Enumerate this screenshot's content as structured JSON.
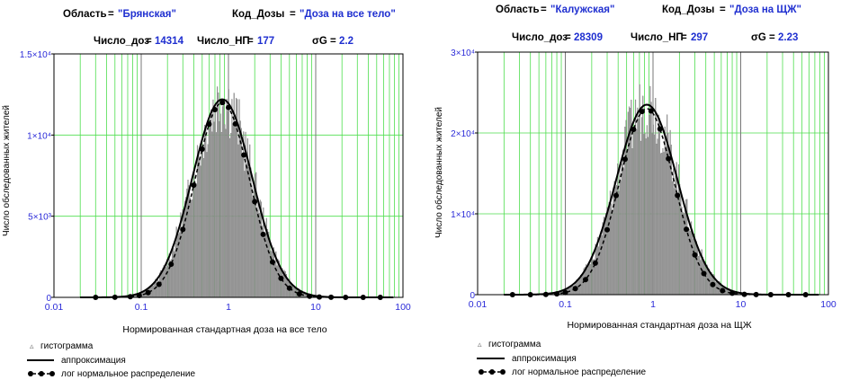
{
  "chart_data": [
    {
      "type": "bar",
      "region_label": "Область",
      "region_value": "\"Брянская\"",
      "dose_code_label": "Код_Дозы",
      "dose_code_value": "\"Доза на все тело\"",
      "n_doses_label": "Число_доз",
      "n_doses_value": "14314",
      "n_settlements_label": "Число_НП",
      "n_settlements_value": "177",
      "sigma_label": "σG",
      "sigma_value": "2.2",
      "xlabel": "Нормированная стандартная доза на все тело",
      "ylabel": "Число обследованных жителей",
      "x_scale": "log",
      "xlim": [
        0.01,
        100
      ],
      "ylim": [
        0,
        15000
      ],
      "x_ticks": [
        "0.01",
        "0.1",
        "1",
        "10",
        "100"
      ],
      "y_ticks": [
        {
          "value": 0,
          "label": "0"
        },
        {
          "value": 5000,
          "label": "5×10³"
        },
        {
          "value": 10000,
          "label": "1×10⁴"
        },
        {
          "value": 15000,
          "label": "1.5×10⁴"
        }
      ],
      "grid": true,
      "peak_count": 12200,
      "peak_x": 0.85,
      "sigma_g": 2.2,
      "lognormal_sigma_g": 2.05,
      "lognormal_peak_count": 12000,
      "lognormal_markers_x": [
        0.03,
        0.05,
        0.075,
        0.095,
        0.12,
        0.16,
        0.22,
        0.3,
        0.4,
        0.5,
        0.6,
        0.7,
        0.85,
        1.0,
        1.2,
        1.5,
        2.0,
        2.5,
        3.2,
        4.0,
        5.0,
        6.5,
        8.5,
        11,
        15,
        22,
        35,
        55
      ],
      "legend": [
        "гистограмма",
        "аппроксимация",
        "лог нормальное распределение"
      ]
    },
    {
      "type": "bar",
      "region_label": "Область",
      "region_value": "\"Калужская\"",
      "dose_code_label": "Код_Дозы",
      "dose_code_value": "\"Доза на ЩЖ\"",
      "n_doses_label": "Число_доз",
      "n_doses_value": "28309",
      "n_settlements_label": "Число_НП",
      "n_settlements_value": "297",
      "sigma_label": "σG",
      "sigma_value": "2.23",
      "xlabel": "Нормированная стандартная доза на ЩЖ",
      "ylabel": "Число обследованных жителей",
      "x_scale": "log",
      "xlim": [
        0.01,
        100
      ],
      "ylim": [
        0,
        30000
      ],
      "x_ticks": [
        "0.01",
        "0.1",
        "1",
        "10",
        "100"
      ],
      "y_ticks": [
        {
          "value": 0,
          "label": "0"
        },
        {
          "value": 10000,
          "label": "1×10⁴"
        },
        {
          "value": 20000,
          "label": "2×10⁴"
        },
        {
          "value": 30000,
          "label": "3×10⁴"
        }
      ],
      "grid": true,
      "peak_count": 23500,
      "peak_x": 0.85,
      "sigma_g": 2.23,
      "lognormal_sigma_g": 2.05,
      "lognormal_peak_count": 23000,
      "lognormal_markers_x": [
        0.025,
        0.04,
        0.06,
        0.08,
        0.1,
        0.13,
        0.17,
        0.22,
        0.3,
        0.38,
        0.48,
        0.6,
        0.75,
        0.95,
        1.2,
        1.5,
        1.9,
        2.4,
        3.0,
        3.8,
        4.8,
        6.2,
        8.0,
        11,
        15,
        22,
        35,
        55
      ],
      "legend": [
        "гистограмма",
        "аппроксимация",
        "лог нормальное распределение"
      ]
    }
  ]
}
